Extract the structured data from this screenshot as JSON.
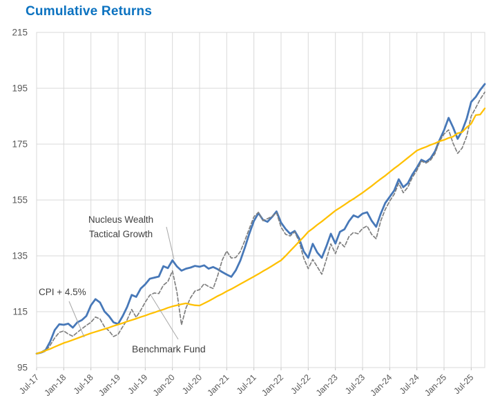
{
  "title": "Cumulative Returns",
  "colors": {
    "title": "#0b72c0",
    "grid": "#d9d9d9",
    "axis_text": "#595959",
    "annotation_text": "#404040",
    "leader_line": "#a6a6a6",
    "background": "#ffffff"
  },
  "chart_data": {
    "type": "line",
    "title": "Cumulative Returns",
    "xlabel": "",
    "ylabel": "",
    "ylim": [
      95,
      215
    ],
    "y_ticks": [
      95,
      115,
      135,
      155,
      175,
      195,
      215
    ],
    "grid": true,
    "legend_position": "inline-annotations",
    "months_per_tick": 6,
    "x_tick_labels": [
      "Jul-17",
      "Jan-18",
      "Jul-18",
      "Jan-19",
      "Jul-19",
      "Jan-20",
      "Jul-20",
      "Jan-21",
      "Jul-21",
      "Jan-22",
      "Jul-22",
      "Jan-23",
      "Jul-23",
      "Jan-24",
      "Jul-24",
      "Jan-25",
      "Jul-25"
    ],
    "x_months": [
      "Jul-17",
      "Aug-17",
      "Sep-17",
      "Oct-17",
      "Nov-17",
      "Dec-17",
      "Jan-18",
      "Feb-18",
      "Mar-18",
      "Apr-18",
      "May-18",
      "Jun-18",
      "Jul-18",
      "Aug-18",
      "Sep-18",
      "Oct-18",
      "Nov-18",
      "Dec-18",
      "Jan-19",
      "Feb-19",
      "Mar-19",
      "Apr-19",
      "May-19",
      "Jun-19",
      "Jul-19",
      "Aug-19",
      "Sep-19",
      "Oct-19",
      "Nov-19",
      "Dec-19",
      "Jan-20",
      "Feb-20",
      "Mar-20",
      "Apr-20",
      "May-20",
      "Jun-20",
      "Jul-20",
      "Aug-20",
      "Sep-20",
      "Oct-20",
      "Nov-20",
      "Dec-20",
      "Jan-21",
      "Feb-21",
      "Mar-21",
      "Apr-21",
      "May-21",
      "Jun-21",
      "Jul-21",
      "Aug-21",
      "Sep-21",
      "Oct-21",
      "Nov-21",
      "Dec-21",
      "Jan-22",
      "Feb-22",
      "Mar-22",
      "Apr-22",
      "May-22",
      "Jun-22",
      "Jul-22",
      "Aug-22",
      "Sep-22",
      "Oct-22",
      "Nov-22",
      "Dec-22",
      "Jan-23",
      "Feb-23",
      "Mar-23",
      "Apr-23",
      "May-23",
      "Jun-23",
      "Jul-23",
      "Aug-23",
      "Sep-23",
      "Oct-23",
      "Nov-23",
      "Dec-23",
      "Jan-24",
      "Feb-24",
      "Mar-24",
      "Apr-24",
      "May-24",
      "Jun-24",
      "Jul-24",
      "Aug-24",
      "Sep-24",
      "Oct-24",
      "Nov-24",
      "Dec-24",
      "Jan-25",
      "Feb-25",
      "Mar-25",
      "Apr-25",
      "May-25",
      "Jun-25",
      "Jul-25",
      "Aug-25",
      "Sep-25",
      "Oct-25"
    ],
    "series": [
      {
        "name": "Nucleus Wealth Tactical Growth",
        "color": "#4778b8",
        "style": "solid",
        "width": 2.8,
        "values": [
          100.0,
          100.4,
          101.3,
          104.3,
          108.4,
          110.5,
          110.3,
          110.7,
          109.3,
          111.2,
          112.0,
          113.5,
          117.3,
          119.5,
          118.3,
          115.1,
          113.4,
          111.2,
          110.6,
          113.4,
          116.7,
          121.0,
          120.3,
          123.3,
          124.8,
          126.8,
          127.2,
          127.6,
          131.3,
          130.6,
          133.4,
          131.2,
          129.7,
          130.4,
          130.8,
          131.4,
          131.1,
          131.6,
          130.4,
          131.0,
          130.2,
          129.2,
          128.3,
          127.5,
          129.8,
          133.3,
          138.0,
          143.0,
          147.5,
          150.3,
          147.9,
          147.2,
          148.9,
          150.9,
          146.9,
          144.6,
          142.9,
          143.9,
          141.2,
          136.6,
          134.3,
          139.3,
          136.2,
          134.3,
          138.4,
          142.9,
          139.4,
          143.6,
          144.5,
          147.4,
          149.5,
          148.8,
          150.1,
          150.6,
          147.6,
          145.4,
          150.0,
          153.9,
          156.1,
          158.4,
          162.4,
          159.6,
          161.0,
          164.1,
          166.6,
          169.4,
          168.6,
          169.9,
          172.4,
          176.4,
          180.0,
          184.4,
          181.0,
          176.9,
          179.8,
          184.1,
          190.1,
          191.9,
          194.4,
          196.5
        ]
      },
      {
        "name": "Benchmark Fund",
        "color": "#7f7f7f",
        "style": "dashed",
        "width": 1.7,
        "values": [
          100.0,
          100.2,
          100.9,
          103.0,
          105.6,
          107.6,
          108.1,
          107.0,
          106.2,
          107.6,
          108.9,
          110.1,
          111.2,
          113.1,
          112.4,
          109.6,
          108.1,
          106.1,
          106.9,
          109.6,
          112.1,
          115.8,
          113.0,
          115.5,
          118.4,
          120.9,
          121.7,
          121.5,
          124.5,
          125.8,
          129.6,
          122.0,
          110.3,
          116.3,
          120.0,
          122.4,
          122.9,
          125.0,
          124.0,
          123.3,
          127.9,
          133.5,
          136.7,
          134.2,
          134.4,
          136.5,
          140.5,
          144.8,
          149.0,
          150.6,
          147.6,
          148.3,
          149.1,
          150.4,
          145.3,
          142.7,
          142.1,
          143.6,
          140.1,
          134.2,
          130.4,
          133.7,
          131.1,
          128.4,
          133.7,
          139.3,
          135.8,
          139.9,
          138.2,
          141.9,
          143.4,
          142.9,
          144.8,
          145.7,
          142.7,
          141.1,
          147.4,
          151.6,
          154.6,
          157.1,
          161.0,
          157.6,
          159.6,
          163.1,
          165.6,
          168.9,
          168.2,
          169.2,
          171.6,
          176.0,
          178.6,
          180.1,
          175.3,
          171.7,
          173.6,
          177.8,
          185.0,
          188.0,
          191.1,
          193.6
        ]
      },
      {
        "name": "CPI + 4.5%",
        "color": "#ffc000",
        "style": "solid",
        "width": 2.3,
        "values": [
          100.0,
          100.5,
          101.1,
          101.7,
          102.4,
          103.1,
          103.8,
          104.3,
          104.9,
          105.5,
          106.1,
          106.7,
          107.3,
          107.8,
          108.3,
          108.8,
          109.3,
          109.9,
          110.4,
          110.9,
          111.5,
          112.0,
          112.5,
          113.1,
          113.6,
          114.2,
          114.7,
          115.3,
          115.8,
          116.4,
          116.9,
          117.3,
          117.7,
          118.0,
          117.6,
          117.3,
          117.2,
          118.0,
          118.8,
          119.7,
          120.6,
          121.4,
          122.3,
          123.1,
          124.0,
          124.9,
          125.8,
          126.7,
          127.6,
          128.5,
          129.5,
          130.4,
          131.4,
          132.4,
          133.4,
          135.0,
          136.7,
          138.4,
          140.1,
          141.8,
          143.6,
          144.8,
          146.1,
          147.3,
          148.6,
          149.9,
          151.2,
          152.2,
          153.3,
          154.4,
          155.4,
          156.5,
          157.6,
          158.8,
          160.0,
          161.3,
          162.5,
          163.7,
          165.0,
          166.3,
          167.5,
          168.8,
          170.1,
          171.4,
          172.7,
          173.4,
          174.0,
          174.7,
          175.3,
          176.0,
          176.5,
          177.2,
          177.7,
          178.9,
          179.3,
          181.0,
          182.3,
          185.4,
          185.6,
          187.8
        ]
      }
    ],
    "annotations": {
      "nucleus": {
        "lines": [
          "Nucleus Wealth",
          "Tactical Growth"
        ],
        "leader": [
          241,
          329,
          252,
          376
        ]
      },
      "cpi": {
        "text": "CPI + 4.5%",
        "leader": [
          100,
          437,
          122,
          489
        ]
      },
      "benchmark": {
        "text": "Benchmark Fund",
        "leader": [
          258,
          492,
          219,
          429
        ]
      }
    }
  }
}
